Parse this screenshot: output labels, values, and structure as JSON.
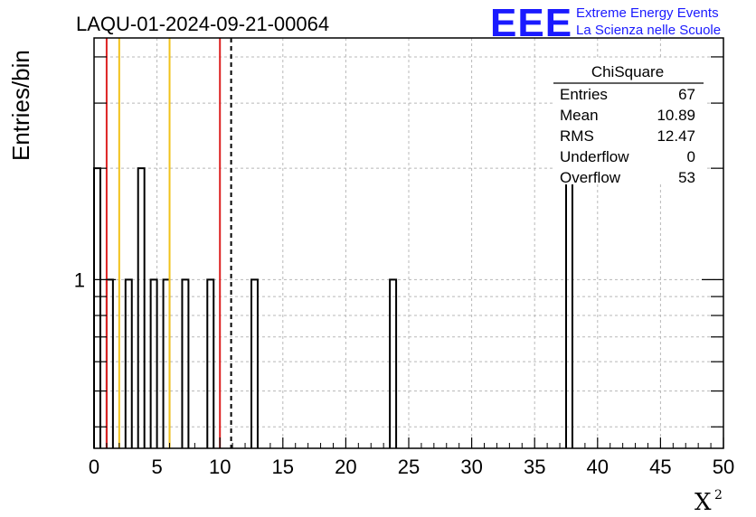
{
  "title": "LAQU-01-2024-09-21-00064",
  "logo": {
    "mark": "EEE",
    "line1": "Extreme Energy Events",
    "line2": "La Scienza nelle Scuole",
    "color": "#1a1aff"
  },
  "stats_box": {
    "name": "ChiSquare",
    "rows": [
      {
        "label": "Entries",
        "value": "67"
      },
      {
        "label": "Mean",
        "value": "10.89"
      },
      {
        "label": "RMS",
        "value": "12.47"
      },
      {
        "label": "Underflow",
        "value": "0"
      },
      {
        "label": "Overflow",
        "value": "53"
      }
    ]
  },
  "chart_data": {
    "type": "bar",
    "title": "LAQU-01-2024-09-21-00064",
    "xlabel": "X",
    "xlabel_superscript": "2",
    "ylabel": "Entries/bin",
    "xlim": [
      0,
      50
    ],
    "ylim": [
      0.35,
      4.5
    ],
    "y_scale": "log",
    "x_ticks": [
      "0",
      "5",
      "10",
      "15",
      "20",
      "25",
      "30",
      "35",
      "40",
      "45",
      "50"
    ],
    "y_tick_labels": [
      "1"
    ],
    "bin_width": 0.5,
    "bins": [
      {
        "x": 0.0,
        "count": 2
      },
      {
        "x": 1.0,
        "count": 1
      },
      {
        "x": 2.5,
        "count": 1
      },
      {
        "x": 3.5,
        "count": 2
      },
      {
        "x": 4.5,
        "count": 1
      },
      {
        "x": 5.5,
        "count": 1
      },
      {
        "x": 7.0,
        "count": 1
      },
      {
        "x": 9.0,
        "count": 1
      },
      {
        "x": 12.5,
        "count": 1
      },
      {
        "x": 23.5,
        "count": 1
      },
      {
        "x": 37.5,
        "count": 2
      }
    ],
    "vertical_lines": [
      {
        "x": 1,
        "color": "#dd2222",
        "style": "solid"
      },
      {
        "x": 2,
        "color": "#f2c21b",
        "style": "solid"
      },
      {
        "x": 6,
        "color": "#f2c21b",
        "style": "solid"
      },
      {
        "x": 10,
        "color": "#dd2222",
        "style": "solid"
      },
      {
        "x": 10.89,
        "color": "#000000",
        "style": "dashed"
      }
    ],
    "grid": true
  }
}
